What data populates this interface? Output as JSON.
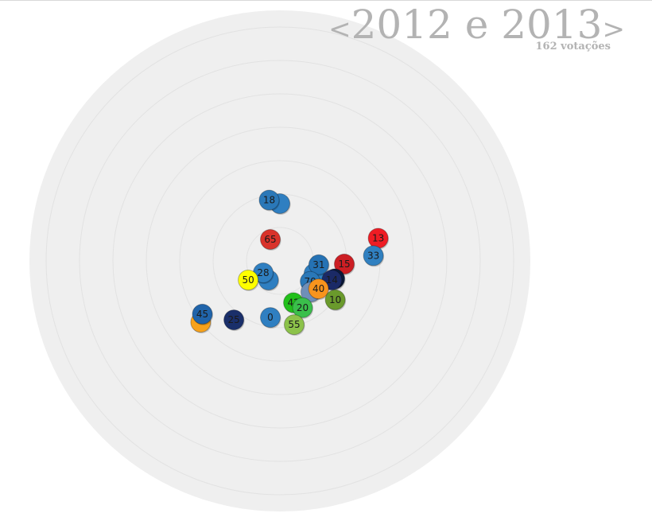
{
  "header": {
    "prev_arrow": "<",
    "next_arrow": ">",
    "period_label": "2012 e 2013",
    "votes_count": "162 votações"
  },
  "chart_data": {
    "type": "scatter",
    "title": "2012 e 2013",
    "subtitle": "162 votações",
    "grid": "concentric-circles",
    "xlim": [
      -1,
      1
    ],
    "ylim": [
      -1,
      1
    ],
    "points": [
      {
        "label": "",
        "x": 0.0,
        "y": 0.24,
        "color": "#2f7fc1"
      },
      {
        "label": "18",
        "x": -0.045,
        "y": 0.255,
        "color": "#2a78b8"
      },
      {
        "label": "65",
        "x": -0.04,
        "y": 0.09,
        "color": "#d9332b"
      },
      {
        "label": "13",
        "x": 0.412,
        "y": 0.095,
        "color": "#ee1c24"
      },
      {
        "label": "33",
        "x": 0.392,
        "y": 0.022,
        "color": "#3080c0"
      },
      {
        "label": "15",
        "x": 0.27,
        "y": -0.013,
        "color": "#cc1e24"
      },
      {
        "label": "",
        "x": 0.143,
        "y": -0.053,
        "color": "#2f7fc1"
      },
      {
        "label": "31",
        "x": 0.163,
        "y": -0.016,
        "color": "#2572b4"
      },
      {
        "label": "",
        "x": 0.23,
        "y": -0.075,
        "color": "#0b1a3a"
      },
      {
        "label": "14",
        "x": 0.218,
        "y": -0.08,
        "color": "#1b2a66"
      },
      {
        "label": "70",
        "x": 0.127,
        "y": -0.086,
        "color": "#2a78b8"
      },
      {
        "label": "",
        "x": 0.13,
        "y": -0.13,
        "color": "#6f8fb8"
      },
      {
        "label": "40",
        "x": 0.162,
        "y": -0.117,
        "color": "#f7941d"
      },
      {
        "label": "10",
        "x": 0.232,
        "y": -0.163,
        "color": "#6a9a2c"
      },
      {
        "label": "42",
        "x": 0.057,
        "y": -0.175,
        "color": "#22c01b"
      },
      {
        "label": "20",
        "x": 0.095,
        "y": -0.196,
        "color": "#3abf4b"
      },
      {
        "label": "",
        "x": -0.048,
        "y": -0.08,
        "color": "#2f7fc1"
      },
      {
        "label": "28",
        "x": -0.07,
        "y": -0.05,
        "color": "#2f7fc1"
      },
      {
        "label": "50",
        "x": -0.133,
        "y": -0.08,
        "color": "#ffff00"
      },
      {
        "label": "0",
        "x": -0.04,
        "y": -0.237,
        "color": "#2f7fc1"
      },
      {
        "label": "55",
        "x": 0.06,
        "y": -0.267,
        "color": "#8cc24a"
      },
      {
        "label": "25",
        "x": -0.193,
        "y": -0.247,
        "color": "#1a2f6a"
      },
      {
        "label": "",
        "x": -0.332,
        "y": -0.257,
        "color": "#f7a21b"
      },
      {
        "label": "45",
        "x": -0.325,
        "y": -0.223,
        "color": "#2064aa"
      }
    ]
  }
}
